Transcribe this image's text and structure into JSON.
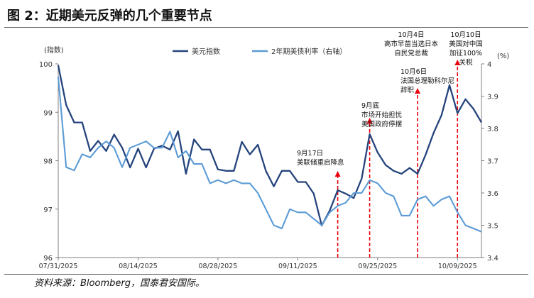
{
  "figure": {
    "title": "图 2：近期美元反弹的几个重要节点",
    "source": "资料来源：Bloomberg，国泰君安国际。"
  },
  "chart_data": {
    "type": "line",
    "left_unit_label": "(指数)",
    "right_unit_label": "(%)",
    "y_left": {
      "min": 96,
      "max": 100,
      "ticks": [
        100,
        99,
        98,
        97,
        96
      ],
      "tick_labels": [
        "100",
        "99",
        "98",
        "97",
        "96"
      ]
    },
    "y_right": {
      "min": 3.4,
      "max": 4.0,
      "ticks": [
        4.0,
        3.9,
        3.8,
        3.7,
        3.6,
        3.5,
        3.4
      ],
      "tick_labels": [
        "4",
        "3.9",
        "3.8",
        "3.7",
        "3.6",
        "3.5",
        "3.4"
      ]
    },
    "x_tick_labels": [
      "07/31/2025",
      "08/14/2025",
      "08/28/2025",
      "09/11/2025",
      "09/25/2025",
      "10/09/2025"
    ],
    "grid": false,
    "legend": [
      "美元指数",
      "2年期美债利率（右轴）"
    ],
    "series": [
      {
        "name": "美元指数",
        "axis": "left",
        "color": "#25447c",
        "values": [
          99.97,
          99.15,
          98.79,
          98.79,
          98.2,
          98.41,
          98.2,
          98.54,
          98.27,
          97.86,
          98.25,
          97.86,
          98.25,
          98.31,
          98.23,
          98.61,
          97.73,
          98.44,
          98.23,
          98.23,
          97.82,
          97.79,
          97.79,
          98.39,
          98.13,
          98.33,
          97.79,
          97.47,
          97.79,
          97.79,
          97.56,
          97.56,
          97.32,
          96.66,
          96.97,
          97.39,
          97.32,
          97.23,
          97.63,
          98.55,
          98.17,
          97.91,
          97.79,
          97.73,
          97.85,
          97.73,
          98.12,
          98.57,
          98.94,
          99.56,
          98.98,
          99.27,
          99.07,
          98.79
        ]
      },
      {
        "name": "2年期美债利率（右轴）",
        "axis": "right",
        "color": "#5c9bd5",
        "values": [
          3.96,
          3.68,
          3.67,
          3.72,
          3.71,
          3.74,
          3.76,
          3.74,
          3.68,
          3.74,
          3.75,
          3.76,
          3.74,
          3.74,
          3.79,
          3.71,
          3.73,
          3.69,
          3.69,
          3.63,
          3.64,
          3.63,
          3.64,
          3.63,
          3.63,
          3.6,
          3.55,
          3.5,
          3.49,
          3.55,
          3.54,
          3.54,
          3.52,
          3.5,
          3.54,
          3.56,
          3.57,
          3.6,
          3.6,
          3.64,
          3.63,
          3.6,
          3.59,
          3.53,
          3.53,
          3.58,
          3.59,
          3.56,
          3.58,
          3.59,
          3.54,
          3.5,
          3.49,
          3.48
        ]
      }
    ],
    "annotations": [
      {
        "index": 35,
        "lines": [
          "9月17日",
          "美联储重启降息"
        ]
      },
      {
        "index": 39,
        "lines": [
          "9月底",
          "市场开始担忧",
          "美国政府停摆"
        ]
      },
      {
        "index": 45,
        "lines": [
          "10月4日",
          "高市早苗当选日本",
          "自民党总裁"
        ]
      },
      {
        "index": 45,
        "lines": [
          "10月6日",
          "法国总理勒科尔尼",
          "辞职"
        ]
      },
      {
        "index": 50,
        "lines": [
          "10月10日",
          "美国对中国",
          "加征100%",
          "关税"
        ]
      }
    ]
  }
}
